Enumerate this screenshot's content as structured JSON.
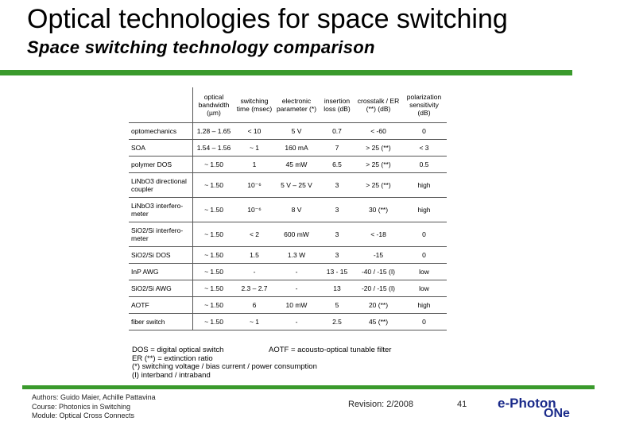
{
  "slide": {
    "title": "Optical technologies for space switching",
    "subtitle": "Space switching technology comparison"
  },
  "table": {
    "headers": [
      "",
      "optical bandwidth (µm)",
      "switching time (msec)",
      "electronic parameter (*)",
      "insertion loss (dB)",
      "crosstalk / ER (**) (dB)",
      "polarization sensitivity (dB)"
    ],
    "rows": [
      [
        "optomechanics",
        "1.28 – 1.65",
        "< 10",
        "5 V",
        "0.7",
        "< -60",
        "0"
      ],
      [
        "SOA",
        "1.54 – 1.56",
        "~ 1",
        "160 mA",
        "7",
        "> 25 (**)",
        "< 3"
      ],
      [
        "polymer DOS",
        "~ 1.50",
        "1",
        "45 mW",
        "6.5",
        "> 25 (**)",
        "0.5"
      ],
      [
        "LiNbO3 directional coupler",
        "~ 1.50",
        "10⁻⁶",
        "5 V – 25 V",
        "3",
        "> 25 (**)",
        "high"
      ],
      [
        "LiNbO3 interfero-meter",
        "~ 1.50",
        "10⁻⁶",
        "8 V",
        "3",
        "30 (**)",
        "high"
      ],
      [
        "SiO2/Si interfero-meter",
        "~ 1.50",
        "< 2",
        "600 mW",
        "3",
        "< -18",
        "0"
      ],
      [
        "SiO2/Si DOS",
        "~ 1.50",
        "1.5",
        "1.3 W",
        "3",
        "-15",
        "0"
      ],
      [
        "InP AWG",
        "~ 1.50",
        "-",
        "-",
        "13 - 15",
        "-40 / -15 (I)",
        "low"
      ],
      [
        "SiO2/Si AWG",
        "~ 1.50",
        "2.3 – 2.7",
        "-",
        "13",
        "-20 / -15 (I)",
        "low"
      ],
      [
        "AOTF",
        "~ 1.50",
        "6",
        "10 mW",
        "5",
        "20 (**)",
        "high"
      ],
      [
        "fiber switch",
        "~ 1.50",
        "~ 1",
        "-",
        "2.5",
        "45 (**)",
        "0"
      ]
    ]
  },
  "legend": {
    "lines": [
      "DOS = digital optical switch",
      "ER (**) = extinction ratio",
      "(*) switching voltage / bias current / power consumption",
      "(I) interband / intraband"
    ],
    "aotf": "AOTF = acousto-optical tunable filter"
  },
  "footer": {
    "authors": "Authors: Guido Maier, Achille Pattavina",
    "course": "Course: Photonics in Switching",
    "module": "Module: Optical Cross Connects",
    "revision": "Revision: 2/2008",
    "page": "41",
    "logo_line1": "e-Photon",
    "logo_line2": "ONe"
  },
  "colors": {
    "accent": "#3a9a2c",
    "logo": "#1a2a8a"
  }
}
